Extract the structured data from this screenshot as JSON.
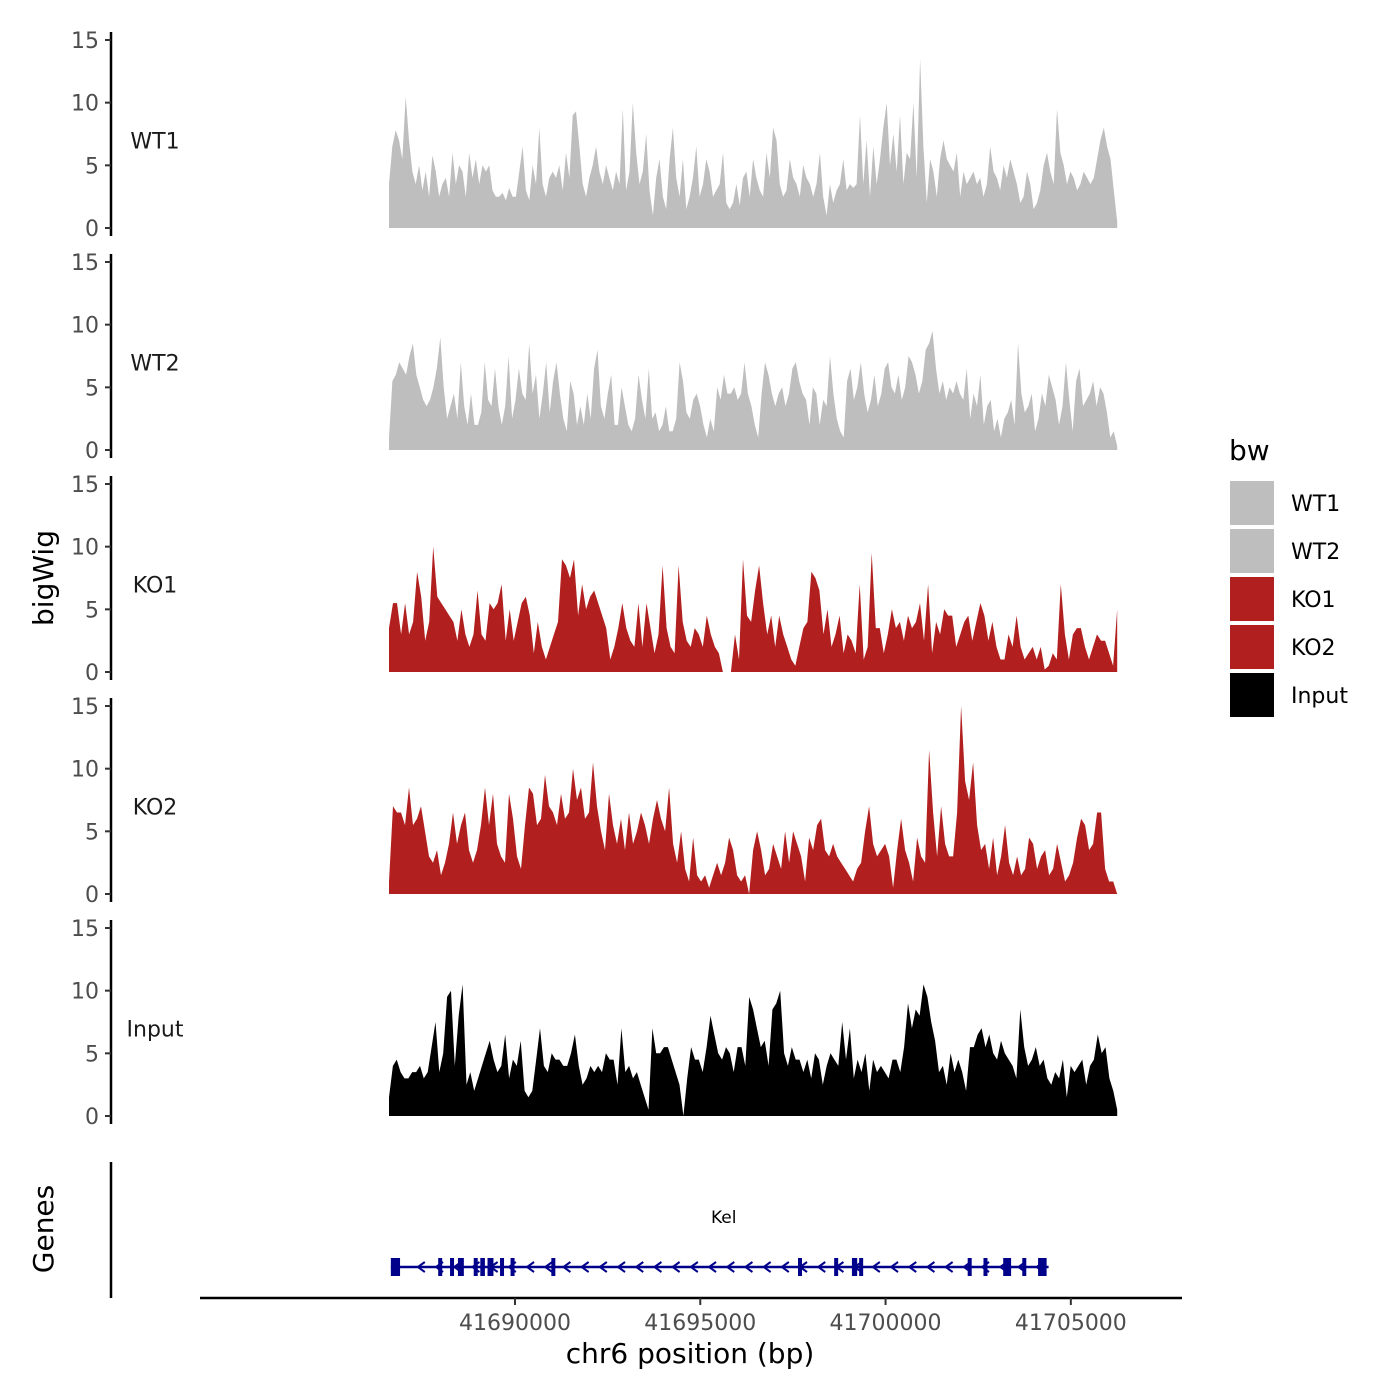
{
  "chart_data": {
    "type": "area",
    "ylabel": "bigWig",
    "xlabel": "chr6 position (bp)",
    "xlim": [
      41681500,
      41708000
    ],
    "ylim": [
      0,
      15
    ],
    "yticks": [
      0,
      5,
      10,
      15
    ],
    "xticks": [
      41690000,
      41695000,
      41700000,
      41705000
    ],
    "x_start": 41686600,
    "x_end": 41706250,
    "legend": {
      "title": "bw",
      "entries": [
        {
          "label": "WT1",
          "color": "#bebebe"
        },
        {
          "label": "WT2",
          "color": "#bebebe"
        },
        {
          "label": "KO1",
          "color": "#b21f1f"
        },
        {
          "label": "KO2",
          "color": "#b21f1f"
        },
        {
          "label": "Input",
          "color": "#000000"
        }
      ]
    },
    "series": [
      {
        "name": "WT1",
        "color": "#bebebe",
        "values": [
          3.5,
          6.5,
          7.8,
          7.0,
          5.5,
          10.5,
          7.0,
          4.5,
          3.5,
          5.0,
          3.0,
          4.5,
          2.5,
          5.8,
          4.5,
          2.5,
          3.5,
          4.0,
          2.5,
          6.0,
          3.5,
          5.0,
          4.5,
          2.5,
          6.0,
          4.0,
          5.5,
          3.5,
          5.0,
          4.5,
          5.0,
          3.0,
          2.5,
          2.5,
          2.8,
          2.2,
          3.2,
          2.5,
          2.5,
          4.5,
          6.5,
          3.0,
          2.2,
          5.0,
          3.5,
          8.0,
          3.5,
          2.5,
          4.0,
          4.5,
          4.0,
          5.0,
          3.0,
          6.0,
          4.0,
          9.0,
          9.3,
          6.5,
          3.5,
          2.5,
          4.0,
          5.0,
          6.5,
          4.5,
          3.5,
          5.0,
          4.0,
          3.0,
          4.5,
          3.5,
          9.5,
          3.0,
          4.5,
          10.0,
          6.0,
          3.5,
          4.5,
          7.5,
          3.0,
          1.0,
          4.0,
          5.5,
          2.5,
          1.5,
          5.5,
          8.0,
          4.0,
          2.5,
          5.5,
          1.5,
          2.5,
          4.0,
          6.5,
          2.5,
          3.5,
          5.5,
          4.5,
          2.5,
          3.0,
          3.5,
          6.0,
          2.0,
          1.5,
          2.0,
          3.5,
          1.8,
          4.0,
          4.5,
          2.5,
          5.5,
          4.0,
          3.0,
          2.5,
          6.0,
          4.0,
          8.0,
          7.0,
          3.5,
          2.5,
          3.0,
          5.5,
          4.0,
          3.5,
          2.5,
          5.0,
          4.0,
          3.5,
          2.5,
          3.5,
          6.0,
          2.5,
          1.0,
          3.5,
          2.0,
          3.0,
          3.5,
          5.5,
          3.0,
          3.5,
          3.2,
          3.5,
          9.0,
          3.5,
          7.0,
          2.5,
          6.5,
          3.5,
          5.5,
          8.0,
          10.0,
          5.0,
          7.5,
          4.5,
          9.0,
          3.5,
          6.0,
          5.5,
          10.0,
          4.0,
          13.5,
          6.5,
          2.0,
          5.5,
          4.5,
          2.5,
          5.5,
          7.0,
          5.5,
          5.0,
          4.5,
          6.0,
          2.5,
          4.5,
          3.5,
          4.0,
          4.5,
          3.5,
          4.0,
          2.5,
          3.5,
          6.5,
          4.5,
          4.0,
          3.0,
          5.0,
          4.0,
          5.5,
          4.5,
          3.5,
          2.0,
          2.5,
          4.5,
          3.5,
          1.5,
          2.0,
          3.0,
          5.0,
          6.0,
          4.5,
          3.5,
          9.5,
          6.0,
          5.0,
          3.5,
          4.5,
          4.0,
          3.0,
          3.5,
          4.5,
          4.0,
          3.5,
          4.0,
          5.5,
          7.0,
          8.0,
          6.5,
          5.5,
          3.0,
          0.5
        ]
      },
      {
        "name": "WT2",
        "color": "#bebebe",
        "values": [
          1.0,
          5.5,
          6.0,
          7.0,
          6.5,
          6.0,
          7.5,
          8.5,
          6.0,
          5.0,
          4.0,
          3.5,
          4.0,
          5.0,
          6.5,
          9.0,
          5.0,
          2.5,
          3.5,
          4.5,
          2.5,
          7.0,
          3.5,
          2.0,
          4.5,
          2.0,
          2.0,
          3.0,
          7.0,
          4.0,
          3.5,
          6.5,
          3.5,
          2.0,
          3.5,
          7.5,
          2.5,
          4.0,
          6.5,
          4.5,
          4.0,
          8.5,
          4.5,
          6.0,
          2.5,
          4.5,
          7.0,
          3.0,
          5.5,
          7.0,
          4.5,
          2.5,
          1.5,
          5.5,
          4.5,
          2.0,
          3.5,
          2.0,
          4.5,
          2.5,
          6.5,
          8.0,
          3.5,
          2.5,
          4.5,
          6.0,
          2.0,
          2.0,
          5.0,
          3.5,
          2.0,
          1.5,
          2.5,
          6.0,
          4.0,
          2.5,
          6.5,
          2.5,
          3.0,
          1.5,
          2.0,
          3.5,
          1.5,
          1.5,
          2.5,
          7.0,
          5.5,
          3.0,
          2.5,
          4.0,
          4.5,
          3.5,
          2.0,
          1.0,
          2.5,
          1.5,
          5.0,
          4.0,
          6.0,
          4.5,
          4.5,
          5.0,
          4.0,
          4.5,
          7.0,
          4.5,
          3.5,
          2.0,
          1.0,
          4.5,
          7.0,
          6.0,
          4.5,
          3.5,
          4.5,
          5.0,
          3.5,
          4.5,
          6.5,
          7.0,
          5.5,
          4.5,
          4.0,
          2.0,
          5.0,
          4.5,
          2.0,
          4.0,
          3.5,
          7.5,
          4.5,
          2.5,
          1.5,
          1.0,
          5.5,
          6.5,
          4.0,
          5.0,
          7.0,
          4.5,
          3.0,
          4.0,
          6.0,
          3.5,
          4.5,
          6.5,
          7.0,
          5.0,
          4.5,
          6.0,
          4.0,
          5.0,
          7.5,
          7.0,
          6.0,
          4.5,
          5.5,
          8.0,
          8.5,
          9.5,
          6.5,
          4.5,
          5.5,
          4.0,
          5.0,
          4.5,
          5.5,
          4.5,
          4.0,
          6.5,
          2.5,
          4.5,
          3.5,
          6.0,
          2.0,
          3.5,
          4.0,
          1.5,
          2.5,
          1.0,
          2.5,
          3.0,
          4.0,
          2.0,
          8.5,
          4.5,
          3.0,
          3.5,
          4.5,
          1.5,
          2.5,
          4.5,
          3.5,
          6.0,
          5.0,
          4.0,
          2.0,
          3.5,
          7.0,
          4.0,
          1.5,
          5.5,
          6.5,
          3.5,
          4.0,
          4.5,
          5.5,
          3.5,
          5.0,
          4.5,
          3.0,
          1.0,
          1.5,
          0.3
        ]
      },
      {
        "name": "KO1",
        "color": "#b21f1f",
        "values": [
          3.5,
          5.5,
          5.5,
          3.0,
          5.5,
          3.0,
          4.0,
          8.0,
          6.0,
          2.5,
          4.0,
          10.0,
          6.0,
          5.5,
          5.0,
          4.5,
          4.0,
          2.5,
          5.0,
          3.0,
          2.0,
          3.0,
          6.5,
          3.0,
          2.5,
          5.5,
          5.0,
          5.5,
          7.0,
          2.5,
          5.0,
          2.5,
          4.0,
          5.5,
          6.0,
          4.5,
          1.5,
          4.0,
          2.0,
          1.0,
          2.0,
          3.0,
          4.0,
          9.0,
          8.5,
          7.5,
          9.0,
          4.5,
          7.0,
          5.0,
          6.0,
          6.5,
          5.5,
          4.5,
          3.5,
          1.0,
          2.0,
          3.5,
          5.5,
          3.5,
          2.5,
          2.0,
          5.5,
          2.0,
          5.5,
          3.5,
          1.5,
          3.0,
          8.5,
          3.5,
          2.0,
          1.5,
          8.5,
          4.0,
          2.5,
          2.0,
          3.5,
          3.0,
          2.0,
          4.5,
          3.0,
          2.0,
          1.5,
          0.0,
          0.0,
          0.0,
          3.0,
          1.0,
          9.0,
          4.5,
          4.0,
          6.5,
          8.5,
          5.5,
          3.0,
          4.5,
          2.0,
          4.5,
          3.0,
          2.0,
          1.0,
          0.5,
          2.0,
          3.5,
          4.0,
          8.0,
          7.5,
          6.5,
          3.0,
          5.0,
          2.0,
          3.0,
          4.5,
          1.5,
          3.0,
          2.5,
          1.5,
          7.0,
          1.0,
          2.0,
          9.5,
          3.5,
          3.5,
          1.5,
          3.0,
          5.0,
          3.5,
          4.0,
          2.5,
          4.5,
          3.5,
          4.0,
          5.5,
          2.5,
          7.0,
          1.5,
          4.0,
          3.0,
          5.0,
          4.5,
          4.5,
          2.0,
          3.0,
          4.0,
          4.5,
          2.5,
          4.0,
          5.5,
          4.5,
          2.5,
          4.0,
          2.0,
          1.0,
          1.0,
          3.0,
          2.0,
          4.5,
          2.0,
          1.0,
          1.5,
          2.0,
          1.0,
          2.0,
          0.2,
          0.5,
          1.5,
          1.0,
          7.0,
          3.0,
          1.0,
          3.0,
          3.5,
          3.5,
          2.0,
          1.0,
          2.0,
          3.0,
          2.5,
          2.5,
          1.5,
          0.5,
          5.0
        ]
      },
      {
        "name": "KO2",
        "color": "#b21f1f",
        "values": [
          1.0,
          7.0,
          6.5,
          6.5,
          5.5,
          8.5,
          5.5,
          6.0,
          7.0,
          5.0,
          3.0,
          2.5,
          3.5,
          1.5,
          2.5,
          4.0,
          6.5,
          4.0,
          5.5,
          6.5,
          3.5,
          2.5,
          3.5,
          5.5,
          8.5,
          5.5,
          8.0,
          4.0,
          3.0,
          2.5,
          8.0,
          6.0,
          3.0,
          2.0,
          5.5,
          8.5,
          8.0,
          5.5,
          6.0,
          9.5,
          7.0,
          6.5,
          5.5,
          8.0,
          6.0,
          6.5,
          10.0,
          7.5,
          8.5,
          6.0,
          6.5,
          10.5,
          7.0,
          5.0,
          3.5,
          8.0,
          5.5,
          4.0,
          6.0,
          3.5,
          6.5,
          4.0,
          5.0,
          6.5,
          5.5,
          4.0,
          6.0,
          7.5,
          6.0,
          5.0,
          8.5,
          4.0,
          2.5,
          5.0,
          2.0,
          1.0,
          4.5,
          1.5,
          1.0,
          1.5,
          0.5,
          1.5,
          2.5,
          1.5,
          2.5,
          4.5,
          3.5,
          1.5,
          1.0,
          1.5,
          0.0,
          3.5,
          5.0,
          3.5,
          1.5,
          2.0,
          4.0,
          3.0,
          2.0,
          5.0,
          2.5,
          5.0,
          4.0,
          3.0,
          1.0,
          4.5,
          3.5,
          5.5,
          6.0,
          3.5,
          3.0,
          4.0,
          3.0,
          2.5,
          2.0,
          1.5,
          1.0,
          2.0,
          2.5,
          5.0,
          7.0,
          4.0,
          3.0,
          3.5,
          4.0,
          3.0,
          0.5,
          3.5,
          6.0,
          3.5,
          2.5,
          1.0,
          4.5,
          3.0,
          2.5,
          11.5,
          6.5,
          3.0,
          7.0,
          4.0,
          3.0,
          3.0,
          6.5,
          15.0,
          9.0,
          7.5,
          10.5,
          5.5,
          3.5,
          4.0,
          2.0,
          4.5,
          1.5,
          3.0,
          5.5,
          2.5,
          1.5,
          3.0,
          1.5,
          2.0,
          4.5,
          4.0,
          2.0,
          3.0,
          3.5,
          1.5,
          2.0,
          4.0,
          2.5,
          1.0,
          1.5,
          2.5,
          4.5,
          6.0,
          5.5,
          3.5,
          4.0,
          6.5,
          6.5,
          2.0,
          1.0,
          1.0,
          0.0
        ]
      },
      {
        "name": "Input",
        "color": "#000000",
        "values": [
          1.5,
          4.0,
          4.5,
          3.5,
          3.0,
          3.0,
          3.5,
          3.5,
          4.0,
          3.0,
          3.5,
          5.5,
          7.5,
          3.5,
          5.0,
          9.5,
          10.0,
          4.0,
          8.0,
          10.5,
          2.5,
          3.5,
          2.0,
          3.0,
          4.0,
          5.0,
          6.0,
          4.5,
          3.5,
          4.0,
          6.5,
          3.0,
          4.5,
          4.0,
          6.0,
          2.0,
          1.5,
          2.0,
          4.5,
          7.0,
          4.0,
          3.5,
          5.0,
          4.5,
          4.5,
          4.0,
          4.0,
          5.0,
          6.5,
          4.0,
          2.5,
          3.0,
          4.0,
          3.5,
          4.0,
          3.5,
          5.0,
          4.5,
          4.5,
          2.5,
          7.0,
          3.5,
          4.0,
          3.0,
          3.5,
          2.5,
          1.5,
          0.5,
          7.0,
          5.0,
          5.0,
          5.5,
          5.5,
          4.5,
          3.5,
          2.5,
          0.0,
          3.0,
          5.5,
          4.5,
          4.5,
          3.5,
          5.5,
          8.0,
          6.5,
          5.0,
          4.5,
          5.5,
          5.0,
          3.5,
          5.5,
          5.5,
          4.0,
          9.5,
          8.5,
          7.0,
          5.5,
          6.0,
          4.0,
          8.5,
          9.0,
          10.0,
          5.0,
          4.0,
          5.5,
          4.5,
          4.5,
          3.5,
          4.5,
          3.0,
          5.0,
          4.5,
          2.5,
          4.0,
          5.0,
          4.5,
          4.0,
          7.5,
          4.5,
          7.0,
          3.0,
          4.5,
          3.5,
          5.0,
          2.0,
          4.5,
          3.5,
          4.0,
          3.5,
          3.0,
          4.5,
          4.5,
          3.5,
          5.5,
          9.0,
          7.0,
          8.5,
          8.0,
          10.5,
          9.5,
          7.5,
          6.0,
          3.5,
          4.0,
          2.5,
          5.0,
          3.5,
          4.5,
          3.5,
          2.0,
          5.5,
          5.5,
          6.5,
          7.0,
          5.5,
          6.5,
          5.0,
          4.5,
          6.0,
          5.0,
          4.5,
          4.0,
          3.0,
          8.5,
          5.5,
          4.0,
          4.5,
          5.5,
          4.0,
          4.5,
          3.0,
          2.5,
          3.5,
          3.0,
          4.5,
          1.5,
          4.0,
          3.5,
          4.0,
          4.5,
          2.5,
          4.0,
          4.5,
          6.5,
          5.0,
          5.5,
          3.0,
          2.0,
          0.5
        ]
      }
    ],
    "genes": [
      {
        "name": "Kel",
        "strand": "-",
        "start": 41686650,
        "end": 41704400
      }
    ]
  }
}
